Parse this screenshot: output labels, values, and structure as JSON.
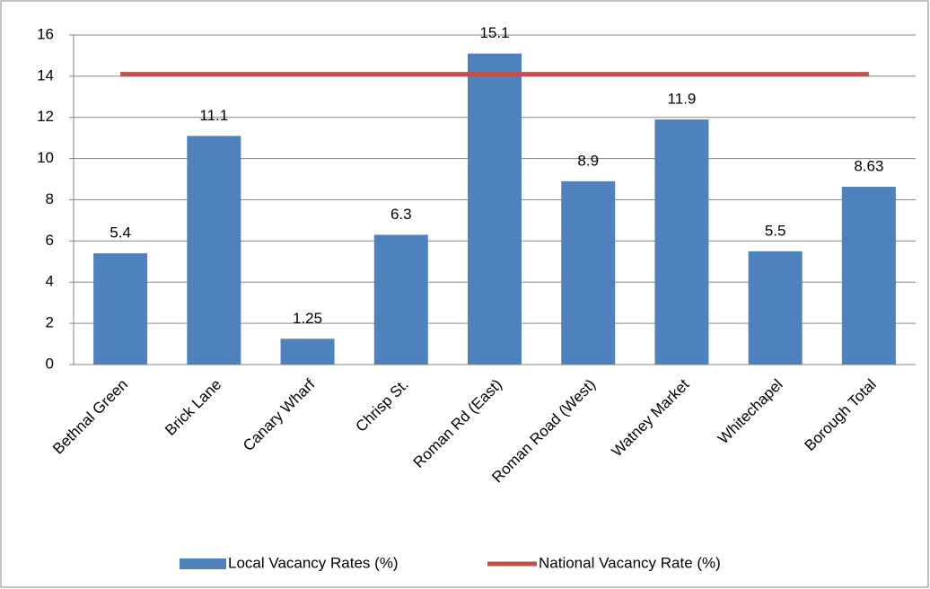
{
  "chart_data": {
    "type": "bar",
    "categories": [
      "Bethnal Green",
      "Brick Lane",
      "Canary Wharf",
      "Chrisp St.",
      "Roman Rd (East)",
      "Roman Road (West)",
      "Watney Market",
      "Whitechapel",
      "Borough Total"
    ],
    "series": [
      {
        "name": "Local Vacancy Rates (%)",
        "type": "bar",
        "color": "#4f81bd",
        "values": [
          5.4,
          11.1,
          1.25,
          6.3,
          15.1,
          8.9,
          11.9,
          5.5,
          8.63
        ]
      },
      {
        "name": "National Vacancy Rate (%)",
        "type": "line",
        "color": "#c0504d",
        "values": [
          14.1,
          14.1,
          14.1,
          14.1,
          14.1,
          14.1,
          14.1,
          14.1,
          14.1
        ]
      }
    ],
    "ylim": [
      0,
      16
    ],
    "yticks": [
      0,
      2,
      4,
      6,
      8,
      10,
      12,
      14,
      16
    ],
    "grid": true,
    "legend": "bottom"
  }
}
